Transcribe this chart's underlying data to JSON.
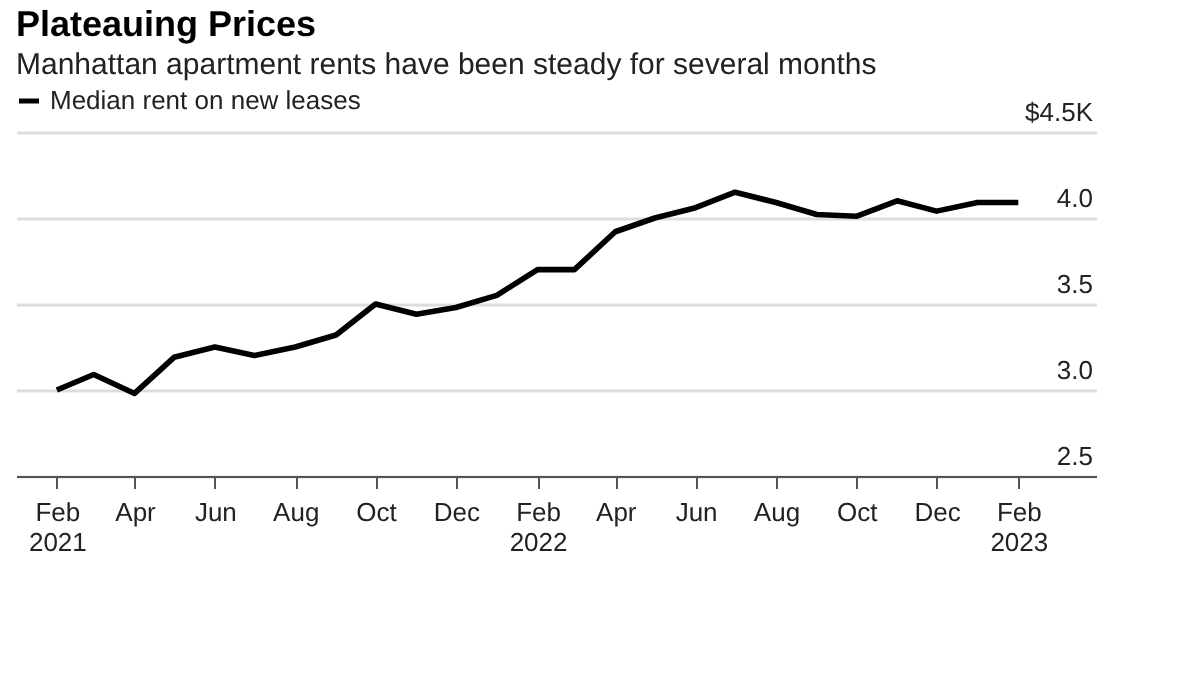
{
  "chart_data": {
    "type": "line",
    "title": "Plateauing Prices",
    "subtitle": "Manhattan apartment rents have been steady for several months",
    "x": [
      "2021-02",
      "2021-03",
      "2021-04",
      "2021-05",
      "2021-06",
      "2021-07",
      "2021-08",
      "2021-09",
      "2021-10",
      "2021-11",
      "2021-12",
      "2022-01",
      "2022-02",
      "2022-03",
      "2022-04",
      "2022-05",
      "2022-06",
      "2022-07",
      "2022-08",
      "2022-09",
      "2022-10",
      "2022-11",
      "2022-12",
      "2023-01",
      "2023-02"
    ],
    "series": [
      {
        "name": "Median rent on new leases",
        "color": "#000000",
        "values": [
          3.0,
          3.09,
          2.98,
          3.19,
          3.25,
          3.2,
          3.25,
          3.32,
          3.5,
          3.44,
          3.48,
          3.55,
          3.7,
          3.7,
          3.92,
          4.0,
          4.06,
          4.15,
          4.09,
          4.02,
          4.01,
          4.1,
          4.04,
          4.09,
          4.09
        ]
      }
    ],
    "xlim": [
      "2021-01",
      "2023-04"
    ],
    "xticks": [
      {
        "value": "2021-02",
        "label": "Feb 2021"
      },
      {
        "value": "2021-04",
        "label": "Apr"
      },
      {
        "value": "2021-06",
        "label": "Jun"
      },
      {
        "value": "2021-08",
        "label": "Aug"
      },
      {
        "value": "2021-10",
        "label": "Oct"
      },
      {
        "value": "2021-12",
        "label": "Dec"
      },
      {
        "value": "2022-02",
        "label": "Feb 2022"
      },
      {
        "value": "2022-04",
        "label": "Apr"
      },
      {
        "value": "2022-06",
        "label": "Jun"
      },
      {
        "value": "2022-08",
        "label": "Aug"
      },
      {
        "value": "2022-10",
        "label": "Oct"
      },
      {
        "value": "2022-12",
        "label": "Dec"
      },
      {
        "value": "2023-02",
        "label": "Feb 2023"
      }
    ],
    "ylim": [
      2.5,
      4.5
    ],
    "yticks": [
      2.5,
      {
        "value": 3,
        "label": "3.0"
      },
      3.5,
      {
        "value": 4,
        "label": "4.0"
      },
      {
        "value": 4.5,
        "label": "$4.5K"
      }
    ],
    "grid": "y",
    "legend": "top left",
    "marker": "none",
    "line_style": "solid"
  }
}
